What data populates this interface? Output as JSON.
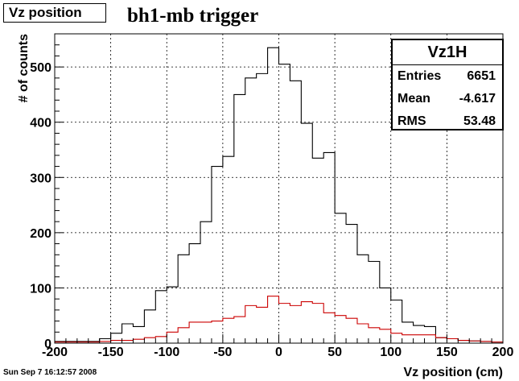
{
  "header": {
    "box_label": "Vz position",
    "title": "bh1-mb trigger"
  },
  "footer": {
    "date": "Sun Sep  7 16:12:57 2008"
  },
  "stats": {
    "name": "Vz1H",
    "rows": [
      {
        "label": "Entries",
        "value": "6651"
      },
      {
        "label": "Mean",
        "value": "-4.617"
      },
      {
        "label": "RMS",
        "value": "53.48"
      }
    ]
  },
  "chart_data": {
    "type": "histogram",
    "title": "bh1-mb trigger",
    "xlabel": "Vz position (cm)",
    "ylabel": "# of counts",
    "xlim": [
      -200,
      200
    ],
    "ylim": [
      0,
      560
    ],
    "x_ticks": [
      -200,
      -150,
      -100,
      -50,
      0,
      50,
      100,
      150,
      200
    ],
    "y_ticks": [
      0,
      100,
      200,
      300,
      400,
      500
    ],
    "grid": true,
    "bin_width": 10,
    "bin_edges_start": -200,
    "series": [
      {
        "color": "#000000",
        "values": [
          3,
          3,
          3,
          3,
          8,
          18,
          35,
          30,
          60,
          95,
          102,
          160,
          180,
          220,
          320,
          338,
          450,
          480,
          488,
          535,
          505,
          475,
          398,
          335,
          345,
          235,
          215,
          160,
          148,
          100,
          78,
          38,
          32,
          30,
          10,
          8,
          5,
          4,
          3,
          2
        ]
      },
      {
        "color": "#cc0000",
        "values": [
          2,
          2,
          2,
          2,
          3,
          5,
          5,
          7,
          10,
          12,
          20,
          28,
          38,
          38,
          40,
          45,
          48,
          68,
          65,
          85,
          72,
          68,
          75,
          72,
          55,
          50,
          45,
          35,
          28,
          25,
          18,
          15,
          15,
          15,
          10,
          8,
          5,
          4,
          3,
          2
        ]
      }
    ]
  }
}
